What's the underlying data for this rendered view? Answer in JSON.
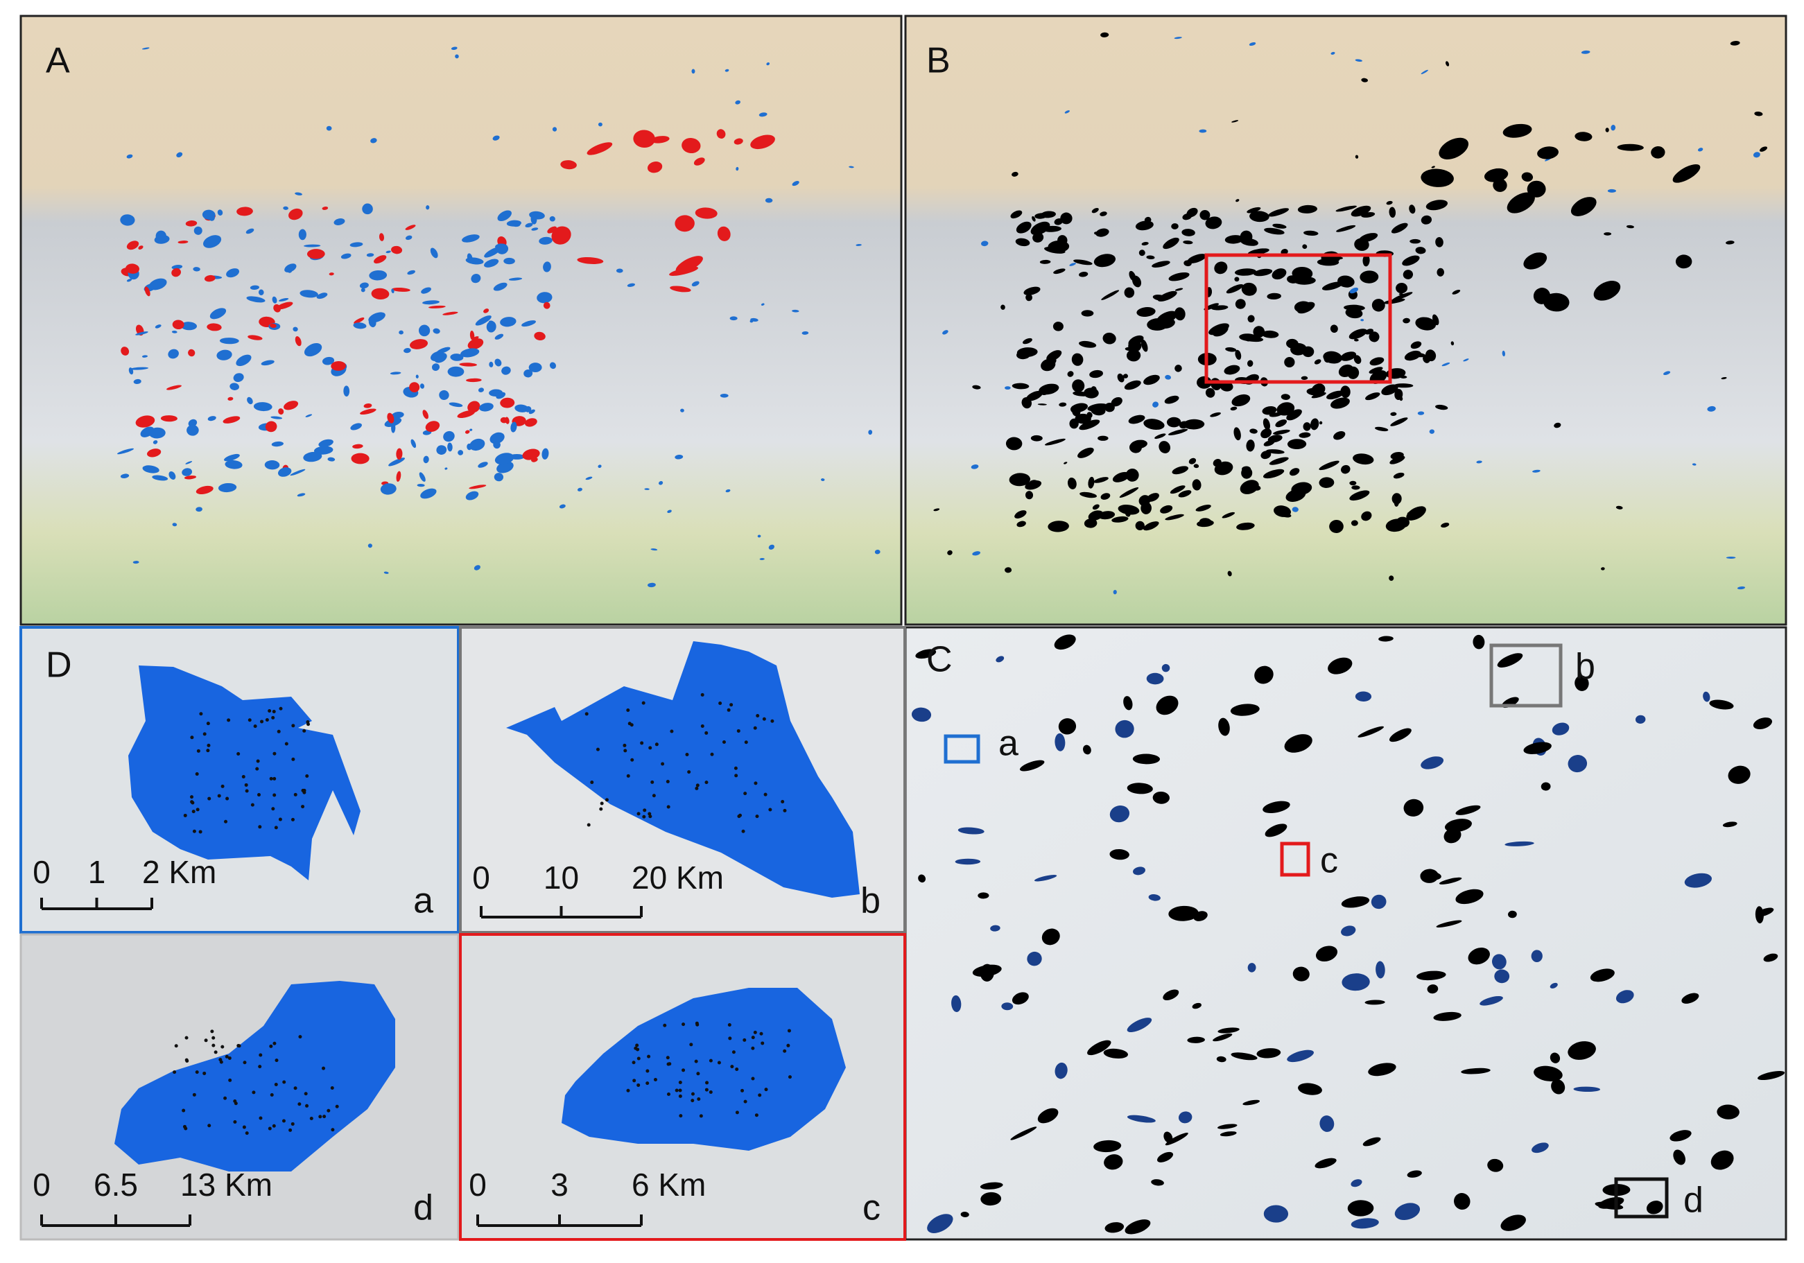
{
  "panels": {
    "A": "A",
    "B": "B",
    "C": "C",
    "D": "D"
  },
  "insets": [
    {
      "letter": "a",
      "scale": [
        "0",
        "1",
        "2 Km"
      ]
    },
    {
      "letter": "b",
      "scale": [
        "0",
        "10",
        "20 Km"
      ]
    },
    {
      "letter": "d",
      "scale": [
        "0",
        "6.5",
        "13 Km"
      ]
    },
    {
      "letter": "c",
      "scale": [
        "0",
        "3",
        "6 Km"
      ]
    }
  ],
  "markers": [
    "a",
    "b",
    "c",
    "d"
  ]
}
